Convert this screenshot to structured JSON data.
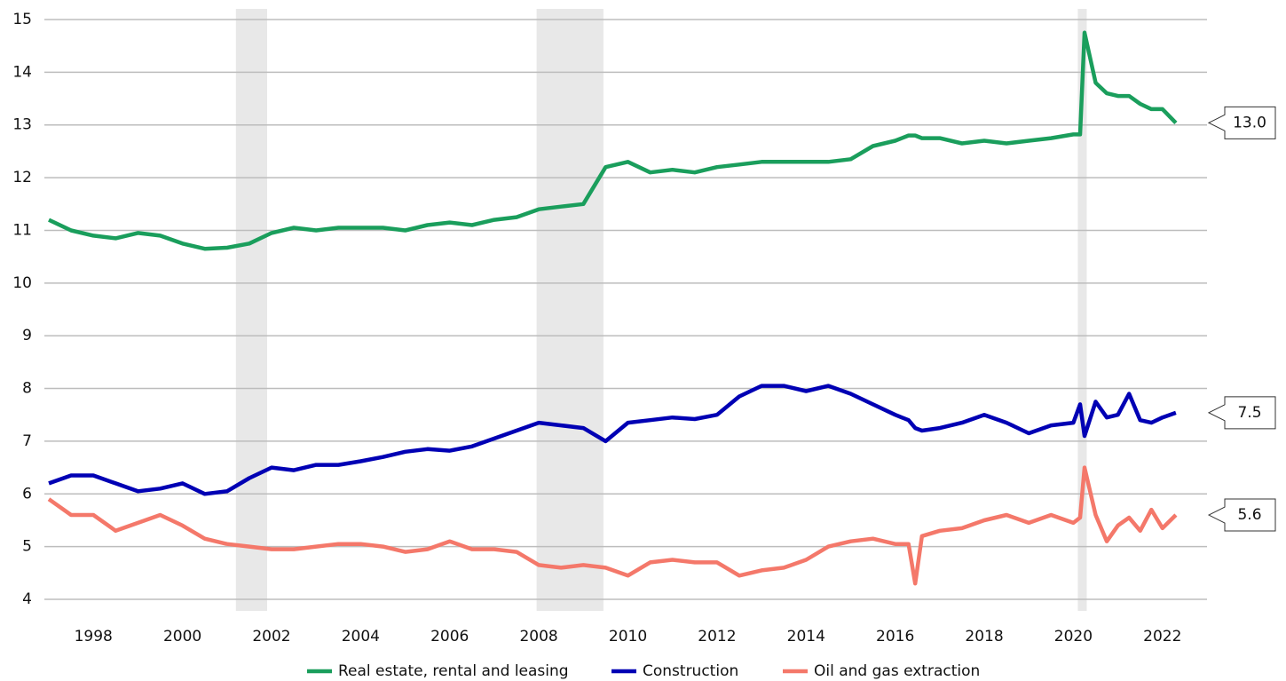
{
  "chart_data": {
    "type": "line",
    "x": [
      1997,
      1997.5,
      1998,
      1998.5,
      1999,
      1999.5,
      2000,
      2000.5,
      2001,
      2001.5,
      2002,
      2002.5,
      2003,
      2003.5,
      2004,
      2004.5,
      2005,
      2005.5,
      2006,
      2006.5,
      2007,
      2007.5,
      2008,
      2008.5,
      2009,
      2009.5,
      2010,
      2010.5,
      2011,
      2011.5,
      2012,
      2012.5,
      2013,
      2013.5,
      2014,
      2014.5,
      2015,
      2015.5,
      2016,
      2016.3,
      2016.45,
      2016.6,
      2017,
      2017.5,
      2018,
      2018.5,
      2019,
      2019.5,
      2020.0,
      2020.15,
      2020.25,
      2020.5,
      2020.75,
      2021,
      2021.25,
      2021.5,
      2021.75,
      2022,
      2022.3
    ],
    "series": [
      {
        "name": "Real estate, rental and leasing",
        "color": "#1a9e5c",
        "end_label": "13.0",
        "values": [
          11.2,
          11.0,
          10.9,
          10.85,
          10.95,
          10.9,
          10.75,
          10.65,
          10.67,
          10.75,
          10.95,
          11.05,
          11.0,
          11.05,
          11.05,
          11.05,
          11.0,
          11.1,
          11.15,
          11.1,
          11.2,
          11.25,
          11.4,
          11.45,
          11.5,
          12.2,
          12.3,
          12.1,
          12.15,
          12.1,
          12.2,
          12.25,
          12.3,
          12.3,
          12.3,
          12.3,
          12.35,
          12.6,
          12.7,
          12.8,
          12.8,
          12.75,
          12.75,
          12.65,
          12.7,
          12.65,
          12.7,
          12.75,
          12.82,
          12.82,
          14.75,
          13.8,
          13.6,
          13.55,
          13.55,
          13.4,
          13.3,
          13.3,
          13.04
        ]
      },
      {
        "name": "Construction",
        "color": "#0000b4",
        "end_label": "7.5",
        "values": [
          6.2,
          6.35,
          6.35,
          6.2,
          6.05,
          6.1,
          6.2,
          6.0,
          6.05,
          6.3,
          6.5,
          6.45,
          6.55,
          6.55,
          6.62,
          6.7,
          6.8,
          6.85,
          6.82,
          6.9,
          7.05,
          7.2,
          7.35,
          7.3,
          7.25,
          7.0,
          7.35,
          7.4,
          7.45,
          7.42,
          7.5,
          7.85,
          8.05,
          8.05,
          7.95,
          8.05,
          7.9,
          7.7,
          7.5,
          7.4,
          7.25,
          7.2,
          7.25,
          7.35,
          7.5,
          7.35,
          7.15,
          7.3,
          7.35,
          7.7,
          7.1,
          7.75,
          7.45,
          7.5,
          7.9,
          7.4,
          7.35,
          7.45,
          7.54
        ]
      },
      {
        "name": "Oil and gas extraction",
        "color": "#f4786a",
        "end_label": "5.6",
        "values": [
          5.9,
          5.6,
          5.6,
          5.3,
          5.45,
          5.6,
          5.4,
          5.15,
          5.05,
          5.0,
          4.95,
          4.95,
          5.0,
          5.05,
          5.05,
          5.0,
          4.9,
          4.95,
          5.1,
          4.95,
          4.95,
          4.9,
          4.65,
          4.6,
          4.65,
          4.6,
          4.45,
          4.7,
          4.75,
          4.7,
          4.7,
          4.45,
          4.55,
          4.6,
          4.75,
          5.0,
          5.1,
          5.15,
          5.05,
          5.05,
          4.3,
          5.2,
          5.3,
          5.35,
          5.5,
          5.6,
          5.45,
          5.6,
          5.45,
          5.55,
          6.5,
          5.6,
          5.1,
          5.4,
          5.55,
          5.3,
          5.7,
          5.35,
          5.6
        ]
      }
    ],
    "shaded_periods": [
      [
        2001.2,
        2001.9
      ],
      [
        2007.95,
        2009.45
      ],
      [
        2020.1,
        2020.3
      ]
    ],
    "xlim": [
      1996.9,
      2023
    ],
    "xticks": [
      1998,
      2000,
      2002,
      2004,
      2006,
      2008,
      2010,
      2012,
      2014,
      2016,
      2018,
      2020,
      2022
    ],
    "ylim": [
      4,
      15
    ],
    "yticks": [
      4,
      5,
      6,
      7,
      8,
      9,
      10,
      11,
      12,
      13,
      14,
      15
    ],
    "grid": true,
    "legend": "bottom"
  }
}
